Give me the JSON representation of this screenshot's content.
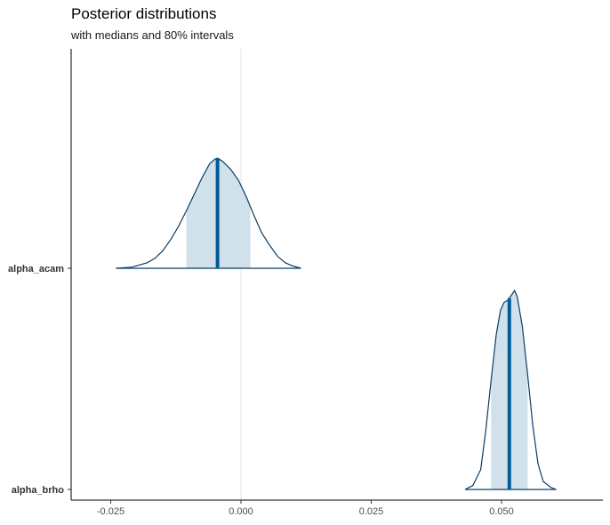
{
  "chart_data": {
    "type": "area",
    "title": "Posterior distributions",
    "subtitle": "with medians and 80% intervals",
    "xlabel": "",
    "ylabel": "",
    "xlim": [
      -0.032,
      0.07
    ],
    "x_ticks": [
      -0.025,
      0.0,
      0.025,
      0.05
    ],
    "x_tick_labels": [
      "-0.025",
      "0.000",
      "0.025",
      "0.050"
    ],
    "vline_x": 0,
    "grid": false,
    "categories": [
      "alpha_acam",
      "alpha_brho"
    ],
    "series": [
      {
        "name": "alpha_acam",
        "median": -0.0045,
        "interval_80": [
          -0.0105,
          0.0018
        ],
        "range": [
          -0.024,
          0.0115
        ],
        "density": [
          [
            -0.024,
            0.0
          ],
          [
            -0.021,
            0.01
          ],
          [
            -0.0195,
            0.03
          ],
          [
            -0.018,
            0.05
          ],
          [
            -0.0165,
            0.09
          ],
          [
            -0.015,
            0.16
          ],
          [
            -0.0135,
            0.26
          ],
          [
            -0.012,
            0.38
          ],
          [
            -0.0105,
            0.52
          ],
          [
            -0.009,
            0.67
          ],
          [
            -0.0075,
            0.82
          ],
          [
            -0.006,
            0.95
          ],
          [
            -0.005,
            0.99
          ],
          [
            -0.0045,
            1.0
          ],
          [
            -0.0035,
            0.97
          ],
          [
            -0.002,
            0.9
          ],
          [
            -0.0005,
            0.8
          ],
          [
            0.001,
            0.65
          ],
          [
            0.0025,
            0.48
          ],
          [
            0.004,
            0.32
          ],
          [
            0.0055,
            0.21
          ],
          [
            0.007,
            0.11
          ],
          [
            0.0085,
            0.05
          ],
          [
            0.01,
            0.02
          ],
          [
            0.0115,
            0.0
          ]
        ]
      },
      {
        "name": "alpha_brho",
        "median": 0.0515,
        "interval_80": [
          0.048,
          0.055
        ],
        "range": [
          0.043,
          0.0605
        ],
        "density": [
          [
            0.043,
            0.0
          ],
          [
            0.0445,
            0.02
          ],
          [
            0.046,
            0.1
          ],
          [
            0.047,
            0.3
          ],
          [
            0.048,
            0.55
          ],
          [
            0.049,
            0.78
          ],
          [
            0.0498,
            0.9
          ],
          [
            0.0505,
            0.94
          ],
          [
            0.0512,
            0.95
          ],
          [
            0.052,
            0.98
          ],
          [
            0.0525,
            1.0
          ],
          [
            0.053,
            0.97
          ],
          [
            0.054,
            0.82
          ],
          [
            0.055,
            0.58
          ],
          [
            0.056,
            0.32
          ],
          [
            0.057,
            0.13
          ],
          [
            0.058,
            0.04
          ],
          [
            0.0595,
            0.01
          ],
          [
            0.0605,
            0.0
          ]
        ]
      }
    ],
    "colors": {
      "outline": "#0a3d66",
      "interval_fill": "#d1e1ec",
      "median": "#005b96",
      "vline": "#e6e6e6",
      "axis": "#000000"
    }
  }
}
